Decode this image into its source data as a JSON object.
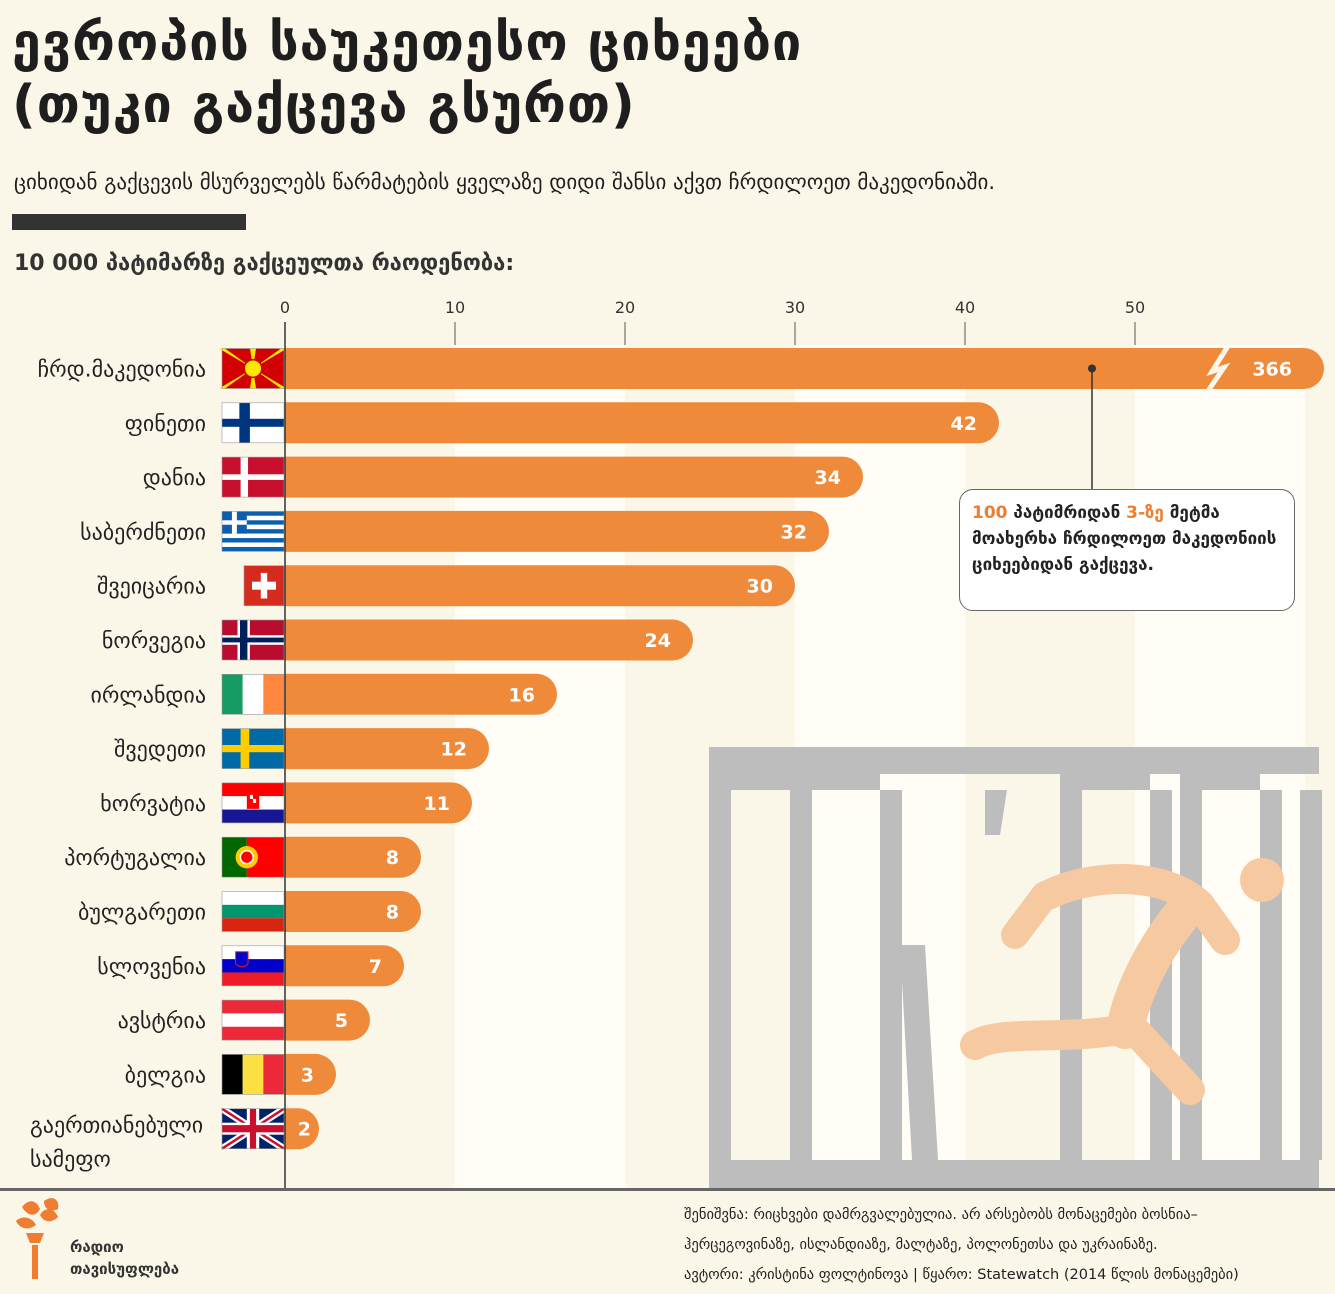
{
  "title_line1": "ევროპის საუკეთესო ციხეები",
  "title_line2": "(თუკი გაქცევა გსურთ)",
  "subtitle": "ციხიდან გაქცევის მსურველებს წარმატების ყველაზე დიდი შანსი აქვთ ჩრდილოეთ მაკედონიაში.",
  "colors": {
    "bar": "#ef8a3a",
    "background": "#fbf7e8",
    "band": "#fffdf5",
    "prison": "#bdbdbd",
    "runner": "#f7c9a0",
    "accent": "#ef7d31"
  },
  "chart_data": {
    "type": "bar",
    "orientation": "horizontal",
    "xlabel": "10 000 პატიმარზე გაქცეულთა რაოდენობა:",
    "xlim": [
      0,
      60
    ],
    "xticks": [
      0,
      10,
      20,
      30,
      40,
      50
    ],
    "axis_break": true,
    "categories": [
      "ჩრდ.მაკედონია",
      "ფინეთი",
      "დანია",
      "საბერძნეთი",
      "შვეიცარია",
      "ნორვეგია",
      "ირლანდია",
      "შვედეთი",
      "ხორვატია",
      "პორტუგალია",
      "ბულგარეთი",
      "სლოვენია",
      "ავსტრია",
      "ბელგია",
      "გაერთიანებული სამეფო"
    ],
    "flags": [
      "north-macedonia-flag",
      "finland-flag",
      "denmark-flag",
      "greece-flag",
      "switzerland-flag",
      "norway-flag",
      "ireland-flag",
      "sweden-flag",
      "croatia-flag",
      "portugal-flag",
      "bulgaria-flag",
      "slovenia-flag",
      "austria-flag",
      "belgium-flag",
      "uk-flag"
    ],
    "values": [
      366,
      42,
      34,
      32,
      30,
      24,
      16,
      12,
      11,
      8,
      8,
      7,
      5,
      3,
      2
    ]
  },
  "callout": {
    "num1": "100",
    "text1": " პატიმრიდან ",
    "num2": "3-ზე",
    "text2": " მეტმა მოახერხა ჩრდილოეთ მაკედონიის ციხეებიდან გაქცევა."
  },
  "logo": {
    "line1": "რადიო",
    "line2": "თავისუფლება"
  },
  "note": {
    "line1": "შენიშვნა: რიცხვები დამრგვალებულია. არ არსებობს მონაცემები ბოსნია–",
    "line2": "ჰერცეგოვინაზე, ისლანდიაზე, მალტაზე, პოლონეთსა და უკრაინაზე.",
    "line3": "ავტორი: კრისტინა ფოლტინოვა | წყარო: Statewatch (2014 წლის მონაცემები)"
  }
}
